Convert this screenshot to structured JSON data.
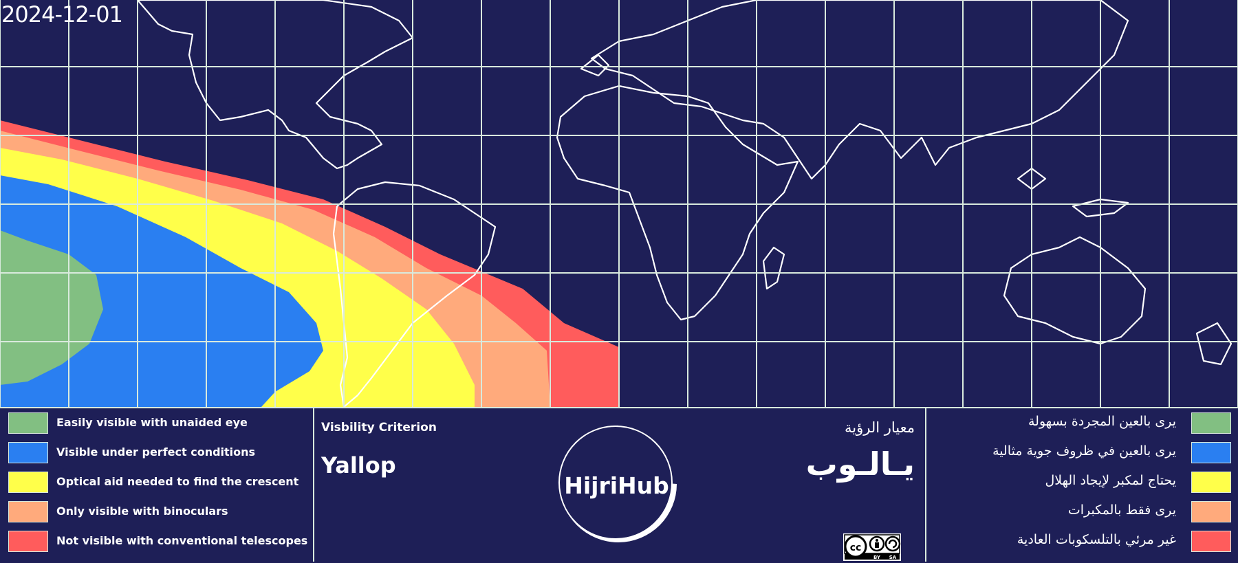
{
  "date": "2024-12-01",
  "colors": {
    "background": "#1e1f57",
    "grid": "#d9eadd",
    "easily_visible": "#82bf82",
    "perfect_conditions": "#2a7ff1",
    "optical_aid": "#ffff4a",
    "binoculars": "#ffaa7c",
    "not_visible": "#ff5c5c"
  },
  "legend_en": [
    {
      "label": "Easily visible with unaided eye",
      "color": "#82bf82"
    },
    {
      "label": "Visible under perfect conditions",
      "color": "#2a7ff1"
    },
    {
      "label": "Optical aid needed to find the crescent",
      "color": "#ffff4a"
    },
    {
      "label": "Only visible with binoculars",
      "color": "#ffaa7c"
    },
    {
      "label": "Not visible with conventional telescopes",
      "color": "#ff5c5c"
    }
  ],
  "legend_ar": [
    {
      "label": "يرى بالعين المجردة بسهولة",
      "color": "#82bf82"
    },
    {
      "label": "يرى بالعين في ظروف جوية مثالية",
      "color": "#2a7ff1"
    },
    {
      "label": "يحتاج لمكبر لإيجاد الهلال",
      "color": "#ffff4a"
    },
    {
      "label": "يرى فقط بالمكبرات",
      "color": "#ffaa7c"
    },
    {
      "label": "غير مرئي بالتلسكوبات العادية",
      "color": "#ff5c5c"
    }
  ],
  "criterion": {
    "label_en": "Visbility Criterion",
    "name_en": "Yallop",
    "label_ar": "معيار الرؤية",
    "name_ar": "يـالـوب"
  },
  "logo": {
    "text": "HijriHub"
  },
  "license": {
    "icons": [
      "cc-icon",
      "by-icon",
      "sa-icon"
    ],
    "text_by": "BY",
    "text_sa": "SA"
  }
}
